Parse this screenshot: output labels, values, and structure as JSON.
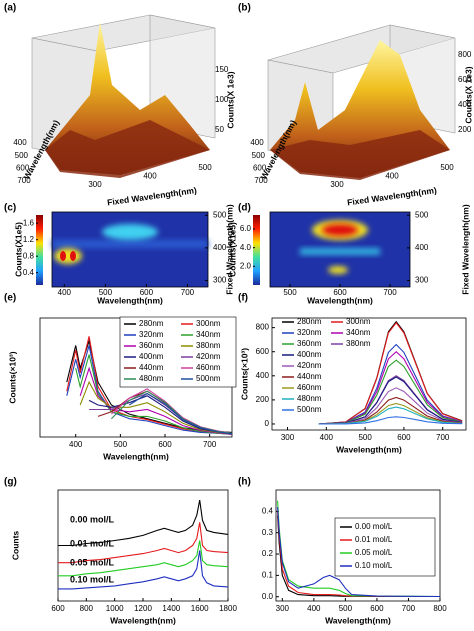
{
  "chart_data": [
    {
      "type": "surface3d",
      "panel": "(a)",
      "xlabel": "Fixed Wavelength(nm)",
      "ylabel": "Wavelength(nm)",
      "zlabel": "Counts(X 1e3)",
      "xlim": [
        300,
        500
      ],
      "xticks": [
        300,
        400,
        500
      ],
      "ylim": [
        400,
        700
      ],
      "yticks": [
        400,
        500,
        600,
        700
      ],
      "zlim": [
        50,
        150
      ],
      "zticks": [
        50,
        100,
        150
      ]
    },
    {
      "type": "surface3d",
      "panel": "(b)",
      "xlabel": "Fixed Wavelength(nm)",
      "ylabel": "Wavelength(nm)",
      "zlabel": "Counts(X 1e3)",
      "xlim": [
        300,
        500
      ],
      "xticks": [
        300,
        400,
        500
      ],
      "ylim": [
        400,
        700
      ],
      "yticks": [
        400,
        500,
        600,
        700
      ],
      "zlim": [
        200,
        800
      ],
      "zticks": [
        200,
        400,
        600,
        800
      ]
    },
    {
      "type": "heatmap",
      "panel": "(c)",
      "xlabel": "Wavelength(nm)",
      "y2label": "Fixed Wavelength(nm)",
      "colorbar_label": "Counts(X1e5)",
      "xlim": [
        370,
        750
      ],
      "xticks": [
        400,
        500,
        600,
        700
      ],
      "y2lim": [
        280,
        510
      ],
      "y2ticks": [
        300,
        400,
        500
      ],
      "colorbar_lim": [
        0.1,
        1.8
      ],
      "colorbar_ticks": [
        0.4,
        0.8,
        1.2,
        1.6
      ]
    },
    {
      "type": "heatmap",
      "panel": "(d)",
      "xlabel": "Wavelength(nm)",
      "y2label": "Fixed Wavelength(nm)",
      "colorbar_label": "Counts(X1e5)",
      "xlim": [
        460,
        740
      ],
      "xticks": [
        500,
        600,
        700
      ],
      "y2lim": [
        280,
        510
      ],
      "y2ticks": [
        300,
        400,
        500
      ],
      "colorbar_lim": [
        0,
        7.5
      ],
      "colorbar_ticks": [
        {
          "value": 2,
          "label": "2.0"
        },
        {
          "value": 4,
          "label": "4.0"
        },
        {
          "value": 6,
          "label": "6.0"
        }
      ]
    },
    {
      "type": "line",
      "panel": "(e)",
      "xlabel": "Wavelength(nm)",
      "ylabel": "Counts(×10³)",
      "xlim": [
        320,
        750
      ],
      "xticks": [
        400,
        500,
        600,
        700
      ],
      "ylim": [
        0,
        260
      ],
      "x": [
        380,
        400,
        410,
        430,
        450,
        480,
        520,
        560,
        600,
        640,
        680,
        720,
        750
      ],
      "series": [
        {
          "name": "280nm",
          "color": "#000000",
          "values": [
            120,
            200,
            150,
            210,
            120,
            70,
            50,
            40,
            30,
            20,
            15,
            12,
            10
          ]
        },
        {
          "name": "300nm",
          "color": "#e41a1c",
          "values": [
            100,
            190,
            140,
            220,
            110,
            60,
            45,
            38,
            28,
            18,
            12,
            10,
            8
          ]
        },
        {
          "name": "320nm",
          "color": "#1f3fbf",
          "values": [
            90,
            170,
            130,
            200,
            100,
            55,
            40,
            35,
            25,
            15,
            10,
            8,
            6
          ]
        },
        {
          "name": "340nm",
          "color": "#2ca02c",
          "values": [
            null,
            150,
            110,
            180,
            95,
            55,
            45,
            45,
            35,
            20,
            12,
            8,
            6
          ]
        },
        {
          "name": "360nm",
          "color": "#b000b0",
          "values": [
            null,
            null,
            90,
            150,
            90,
            60,
            55,
            60,
            45,
            25,
            14,
            9,
            6
          ]
        },
        {
          "name": "380nm",
          "color": "#8c8c00",
          "values": [
            null,
            null,
            70,
            120,
            85,
            65,
            65,
            75,
            55,
            30,
            16,
            10,
            7
          ]
        },
        {
          "name": "400nm",
          "color": "#1a1a80",
          "values": [
            null,
            null,
            null,
            80,
            70,
            65,
            75,
            90,
            65,
            35,
            18,
            11,
            7
          ]
        },
        {
          "name": "420nm",
          "color": "#7b3fa0",
          "values": [
            null,
            null,
            null,
            60,
            60,
            60,
            80,
            95,
            70,
            38,
            20,
            12,
            8
          ]
        },
        {
          "name": "440nm",
          "color": "#8b1a1a",
          "values": [
            null,
            null,
            null,
            null,
            45,
            55,
            85,
            100,
            75,
            40,
            21,
            12,
            8
          ]
        },
        {
          "name": "460nm",
          "color": "#d040a0",
          "values": [
            null,
            null,
            null,
            null,
            null,
            50,
            85,
            105,
            78,
            42,
            22,
            13,
            8
          ]
        },
        {
          "name": "480nm",
          "color": "#2e8b57",
          "values": [
            null,
            null,
            null,
            null,
            null,
            40,
            80,
            100,
            76,
            40,
            21,
            12,
            8
          ]
        },
        {
          "name": "500nm",
          "color": "#1f4f9f",
          "values": [
            null,
            null,
            null,
            null,
            null,
            null,
            70,
            95,
            72,
            38,
            20,
            11,
            7
          ]
        }
      ]
    },
    {
      "type": "line",
      "panel": "(f)",
      "xlabel": "Wavelength(nm)",
      "ylabel": "Counts(×10³)",
      "xlim": [
        260,
        760
      ],
      "xticks": [
        300,
        400,
        500,
        600,
        700
      ],
      "ylim": [
        -50,
        880
      ],
      "yticks": [
        0,
        200,
        400,
        600,
        800
      ],
      "x": [
        380,
        450,
        500,
        530,
        560,
        580,
        600,
        630,
        660,
        700,
        750
      ],
      "series": [
        {
          "name": "280nm",
          "color": "#000000",
          "values": [
            0,
            17,
            128,
            383,
            765,
            850,
            765,
            510,
            255,
            85,
            26
          ]
        },
        {
          "name": "300nm",
          "color": "#e41a1c",
          "values": [
            0,
            17,
            126,
            378,
            756,
            840,
            756,
            504,
            252,
            84,
            25
          ]
        },
        {
          "name": "320nm",
          "color": "#1f3fbf",
          "values": [
            0,
            13,
            99,
            297,
            594,
            660,
            594,
            396,
            198,
            66,
            20
          ]
        },
        {
          "name": "340nm",
          "color": "#b000b0",
          "values": [
            0,
            12,
            90,
            270,
            540,
            600,
            540,
            360,
            180,
            60,
            18
          ]
        },
        {
          "name": "360nm",
          "color": "#2ca02c",
          "values": [
            0,
            11,
            80,
            239,
            477,
            530,
            477,
            318,
            159,
            53,
            16
          ]
        },
        {
          "name": "380nm",
          "color": "#7b3fa0",
          "values": [
            0,
            8,
            60,
            180,
            360,
            400,
            360,
            240,
            120,
            40,
            12
          ]
        },
        {
          "name": "400nm",
          "color": "#1a1a80",
          "values": [
            0,
            8,
            59,
            176,
            351,
            390,
            351,
            234,
            117,
            39,
            12
          ]
        },
        {
          "name": "420nm",
          "color": "#9b59b6",
          "values": [
            0,
            6,
            45,
            135,
            270,
            300,
            270,
            180,
            90,
            30,
            9
          ]
        },
        {
          "name": "440nm",
          "color": "#8b1a1a",
          "values": [
            0,
            4,
            33,
            99,
            198,
            220,
            198,
            132,
            66,
            22,
            7
          ]
        },
        {
          "name": "460nm",
          "color": "#9a9a20",
          "values": [
            0,
            3,
            26,
            77,
            153,
            170,
            153,
            102,
            51,
            17,
            5
          ]
        },
        {
          "name": "480nm",
          "color": "#20b0c0",
          "values": [
            0,
            3,
            21,
            63,
            126,
            140,
            126,
            84,
            42,
            14,
            4
          ]
        },
        {
          "name": "500nm",
          "color": "#3070e0",
          "values": [
            0,
            1,
            9,
            27,
            54,
            60,
            54,
            36,
            18,
            6,
            2
          ]
        }
      ]
    },
    {
      "type": "line",
      "panel": "(g)",
      "xlabel": "Wavelength(nm)",
      "ylabel": "Counts",
      "xlim": [
        600,
        1800
      ],
      "xticks": [
        600,
        800,
        1000,
        1200,
        1400,
        1600,
        1800
      ],
      "ylim": [
        0,
        110
      ],
      "x": [
        600,
        700,
        800,
        900,
        1000,
        1100,
        1200,
        1300,
        1350,
        1400,
        1450,
        1500,
        1550,
        1580,
        1600,
        1620,
        1650,
        1700,
        1800
      ],
      "series": [
        {
          "name": "0.00 mol/L",
          "color": "#000000",
          "values": [
            55,
            55,
            57,
            58,
            60,
            62,
            65,
            70,
            72,
            70,
            68,
            70,
            75,
            85,
            100,
            80,
            70,
            68,
            66
          ]
        },
        {
          "name": "0.01 mol/L",
          "color": "#e41a1c",
          "values": [
            38,
            38,
            40,
            41,
            43,
            45,
            47,
            50,
            52,
            50,
            48,
            50,
            55,
            62,
            78,
            55,
            50,
            49,
            48
          ]
        },
        {
          "name": "0.05 mol/L",
          "color": "#22cc22",
          "values": [
            25,
            25,
            27,
            28,
            30,
            32,
            34,
            36,
            38,
            36,
            34,
            36,
            40,
            45,
            60,
            40,
            36,
            35,
            34
          ]
        },
        {
          "name": "0.10 mol/L",
          "color": "#1f2fbf",
          "values": [
            12,
            12,
            13,
            14,
            15,
            17,
            19,
            22,
            24,
            22,
            20,
            22,
            25,
            32,
            50,
            25,
            18,
            15,
            14
          ]
        }
      ]
    },
    {
      "type": "line",
      "panel": "(h)",
      "xlabel": "Wavelength(nm)",
      "xlim": [
        280,
        800
      ],
      "xticks": [
        300,
        400,
        500,
        600,
        700,
        800
      ],
      "ylim": [
        -0.02,
        0.5
      ],
      "yticks": [
        {
          "value": 0,
          "label": "0.0"
        },
        0.1,
        0.2,
        0.3,
        0.4
      ],
      "x": [
        285,
        290,
        300,
        320,
        350,
        400,
        430,
        450,
        480,
        500,
        520,
        600,
        700,
        800
      ],
      "series": [
        {
          "name": "0.00 mol/L",
          "color": "#000000",
          "values": [
            0.38,
            0.25,
            0.1,
            0.03,
            0.01,
            0.005,
            0.005,
            0.005,
            0.003,
            0.002,
            0.002,
            0.001,
            0.001,
            0.001
          ]
        },
        {
          "name": "0.01 mol/L",
          "color": "#e41a1c",
          "values": [
            0.4,
            0.28,
            0.13,
            0.05,
            0.02,
            0.01,
            0.01,
            0.01,
            0.008,
            0.005,
            0.003,
            0.002,
            0.001,
            0.001
          ]
        },
        {
          "name": "0.05 mol/L",
          "color": "#22cc22",
          "values": [
            0.45,
            0.32,
            0.17,
            0.08,
            0.05,
            0.04,
            0.04,
            0.04,
            0.03,
            0.015,
            0.005,
            0.003,
            0.002,
            0.001
          ]
        },
        {
          "name": "0.10 mol/L",
          "color": "#1f2fbf",
          "values": [
            0.42,
            0.3,
            0.16,
            0.07,
            0.04,
            0.06,
            0.09,
            0.1,
            0.08,
            0.04,
            0.01,
            0.003,
            0.002,
            0.001
          ]
        }
      ]
    }
  ]
}
